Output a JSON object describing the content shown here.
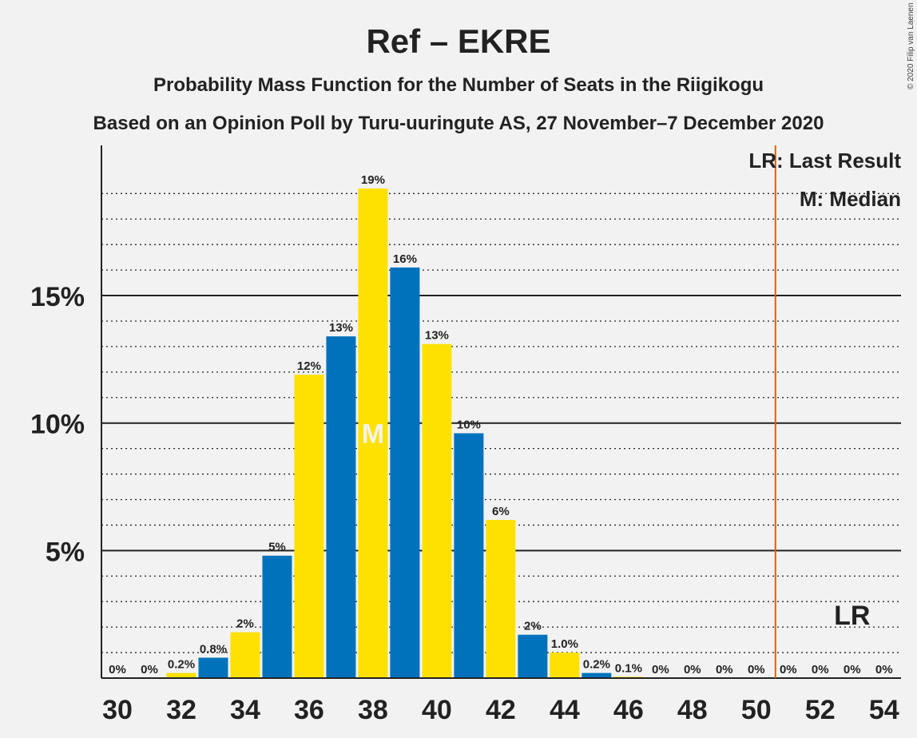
{
  "chart_data": {
    "type": "bar",
    "title": "Ref – EKRE",
    "subtitle": "Probability Mass Function for the Number of Seats in the Riigikogu",
    "subtitle2": "Based on an Opinion Poll by Turu-uuringute AS, 27 November–7 December 2020",
    "copyright": "© 2020 Filip van Laenen",
    "legend": {
      "lr": "LR: Last Result",
      "median": "M: Median",
      "position": "top-right"
    },
    "x": [
      30,
      31,
      32,
      33,
      34,
      35,
      36,
      37,
      38,
      39,
      40,
      41,
      42,
      43,
      44,
      45,
      46,
      47,
      48,
      49,
      50,
      51,
      52,
      53,
      54
    ],
    "values": [
      0,
      0,
      0.2,
      0.8,
      1.8,
      4.8,
      11.9,
      13.4,
      19.2,
      16.1,
      13.1,
      9.6,
      6.2,
      1.7,
      1.0,
      0.2,
      0.05,
      0,
      0,
      0,
      0,
      0,
      0,
      0,
      0
    ],
    "labels": [
      "0%",
      "0%",
      "0.2%",
      "0.8%",
      "2%",
      "5%",
      "12%",
      "13%",
      "19%",
      "16%",
      "13%",
      "10%",
      "6%",
      "2%",
      "1.0%",
      "0.2%",
      "0.1%",
      "0%",
      "0%",
      "0%",
      "0%",
      "0%",
      "0%",
      "0%",
      "0%"
    ],
    "xticks": [
      30,
      32,
      34,
      36,
      38,
      40,
      42,
      44,
      46,
      48,
      50,
      52,
      54
    ],
    "yticks": [
      {
        "value": 5,
        "label": "5%"
      },
      {
        "value": 10,
        "label": "10%"
      },
      {
        "value": 15,
        "label": "15%"
      }
    ],
    "ylim": [
      0,
      21
    ],
    "median": 38,
    "median_label": "M",
    "last_result": 50.6,
    "last_result_label": "LR",
    "lr_marker_seat": 53,
    "colors": {
      "blue": "#0072bb",
      "yellow": "#ffe100",
      "lr_line": "#d9620b",
      "grid": "#222222"
    }
  }
}
